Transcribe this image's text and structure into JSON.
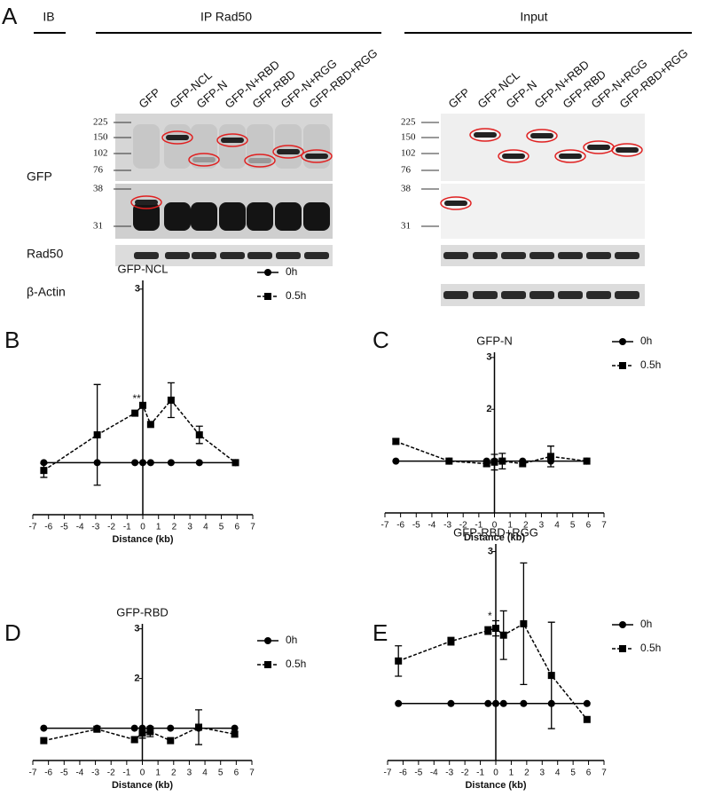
{
  "panel_a": {
    "label": "A",
    "ib": "IB",
    "ip_header": "IP Rad50",
    "input_header": "Input",
    "lanes": [
      "GFP",
      "GFP-NCL",
      "GFP-N",
      "GFP-N+RBD",
      "GFP-RBD",
      "GFP-N+RGG",
      "GFP-RBD+RGG"
    ],
    "markers_upper": [
      "225",
      "150",
      "102",
      "76"
    ],
    "markers_lower": [
      "38",
      "31"
    ],
    "row_labels": [
      "GFP",
      "Rad50",
      "β-Actin"
    ]
  },
  "chart_data": [
    {
      "type": "line",
      "panel": "B",
      "title": "GFP-NCL",
      "xlabel": "Distance (kb)",
      "annotation": "**",
      "x": [
        -6.3,
        -2.9,
        -0.5,
        0,
        0.5,
        1.8,
        3.6,
        5.9
      ],
      "xlim": [
        -7,
        7
      ],
      "xticks": [
        -7,
        -6,
        -5,
        -4,
        -3,
        -2,
        -1,
        0,
        1,
        2,
        3,
        4,
        5,
        6,
        7
      ],
      "ylim": [
        0.4,
        3.1
      ],
      "yticks": [
        3
      ],
      "series": [
        {
          "name": "0h",
          "color": "#000000",
          "marker": "circle",
          "style": "solid",
          "values": [
            1,
            1,
            1,
            1,
            1,
            1,
            1,
            1
          ]
        },
        {
          "name": "0.5h",
          "color": "#000000",
          "marker": "square",
          "style": "dashed",
          "values": [
            0.91,
            1.32,
            1.57,
            1.66,
            1.44,
            1.72,
            1.32,
            1.0
          ],
          "errors": [
            0.08,
            0.58,
            null,
            null,
            null,
            0.2,
            0.1,
            null
          ]
        }
      ]
    },
    {
      "type": "line",
      "panel": "C",
      "title": "GFP-N",
      "xlabel": "Distance (kb)",
      "x": [
        -6.3,
        -2.9,
        -0.5,
        0,
        0.5,
        1.8,
        3.6,
        5.9
      ],
      "xlim": [
        -7,
        7
      ],
      "xticks": [
        -7,
        -6,
        -5,
        -4,
        -3,
        -2,
        -1,
        0,
        1,
        2,
        3,
        4,
        5,
        6,
        7
      ],
      "ylim": [
        0,
        3.1
      ],
      "yticks": [
        2,
        3
      ],
      "series": [
        {
          "name": "0h",
          "color": "#000000",
          "marker": "circle",
          "style": "solid",
          "values": [
            1,
            1,
            1,
            1,
            1,
            1,
            1,
            1
          ]
        },
        {
          "name": "0.5h",
          "color": "#000000",
          "marker": "square",
          "style": "dashed",
          "values": [
            1.38,
            1.0,
            0.95,
            0.98,
            1.0,
            0.95,
            1.09,
            1.0
          ],
          "errors": [
            0.05,
            null,
            0.05,
            0.15,
            0.15,
            null,
            0.2,
            null
          ]
        }
      ]
    },
    {
      "type": "line",
      "panel": "D",
      "title": "GFP-RBD",
      "xlabel": "Distance (kb)",
      "x": [
        -6.3,
        -2.9,
        -0.5,
        0,
        0.5,
        1.8,
        3.6,
        5.9
      ],
      "xlim": [
        -7,
        7
      ],
      "xticks": [
        -7,
        -6,
        -5,
        -4,
        -3,
        -2,
        -1,
        0,
        1,
        2,
        3,
        4,
        5,
        6,
        7
      ],
      "ylim": [
        0.35,
        3.1
      ],
      "yticks": [
        2,
        3
      ],
      "series": [
        {
          "name": "0h",
          "color": "#000000",
          "marker": "circle",
          "style": "solid",
          "values": [
            1,
            1,
            1,
            1,
            1,
            1,
            1,
            1
          ]
        },
        {
          "name": "0.5h",
          "color": "#000000",
          "marker": "square",
          "style": "dashed",
          "values": [
            0.75,
            0.98,
            0.77,
            0.9,
            0.93,
            0.75,
            1.02,
            0.88
          ],
          "errors": [
            null,
            0.05,
            0.05,
            0.1,
            0.1,
            null,
            0.35,
            0.05
          ]
        }
      ]
    },
    {
      "type": "line",
      "panel": "E",
      "title": "GFP-RBD+RGG",
      "xlabel": "Distance (kb)",
      "annotation": "*",
      "x": [
        -6.3,
        -2.9,
        -0.5,
        0,
        0.5,
        1.8,
        3.6,
        5.9
      ],
      "xlim": [
        -7,
        7
      ],
      "xticks": [
        -7,
        -6,
        -5,
        -4,
        -3,
        -2,
        -1,
        0,
        1,
        2,
        3,
        4,
        5,
        6,
        7
      ],
      "ylim": [
        0.25,
        3.1
      ],
      "yticks": [
        3
      ],
      "series": [
        {
          "name": "0h",
          "color": "#000000",
          "marker": "circle",
          "style": "solid",
          "values": [
            1,
            1,
            1,
            1,
            1,
            1,
            1,
            1
          ]
        },
        {
          "name": "0.5h",
          "color": "#000000",
          "marker": "square",
          "style": "dashed",
          "values": [
            1.56,
            1.82,
            1.96,
            1.99,
            1.9,
            2.05,
            1.37,
            0.79
          ],
          "errors": [
            0.2,
            0.05,
            0.05,
            0.1,
            0.32,
            0.8,
            0.7,
            null
          ]
        }
      ]
    }
  ]
}
